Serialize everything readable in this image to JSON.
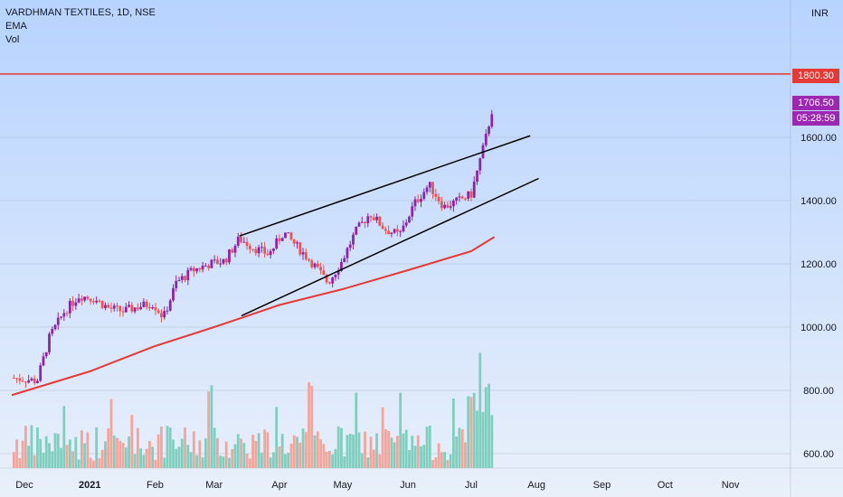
{
  "chart_data": {
    "type": "candlestick",
    "symbol_title": "VARDHMAN TEXTILES, 1D, NSE",
    "indicators": [
      "EMA",
      "Vol"
    ],
    "currency": "INR",
    "y_ticks": [
      600,
      800,
      1000,
      1200,
      1400,
      1600
    ],
    "y_tick_labels": [
      "600.00",
      "800.00",
      "1000.00",
      "1200.00",
      "1400.00",
      "1600.00"
    ],
    "x_ticks": [
      {
        "label": "Dec",
        "day": 0
      },
      {
        "label": "2021",
        "day": 31
      },
      {
        "label": "Feb",
        "day": 62
      },
      {
        "label": "Mar",
        "day": 90
      },
      {
        "label": "Apr",
        "day": 121
      },
      {
        "label": "May",
        "day": 151
      },
      {
        "label": "Jun",
        "day": 182
      },
      {
        "label": "Jul",
        "day": 212
      },
      {
        "label": "Aug",
        "day": 243
      },
      {
        "label": "Sep",
        "day": 274
      },
      {
        "label": "Oct",
        "day": 304
      },
      {
        "label": "Nov",
        "day": 335
      }
    ],
    "ylim": [
      580,
      2000
    ],
    "resistance_level": {
      "value": 1800.3,
      "label": "1800.30",
      "color": "#e53935"
    },
    "last_price": {
      "value": 1706.5,
      "label": "1706.50",
      "countdown": "05:28:59",
      "color": "#9c27b0"
    },
    "close_series": [
      {
        "day": -6,
        "close": 840
      },
      {
        "day": 6,
        "close": 830
      },
      {
        "day": 12,
        "close": 970
      },
      {
        "day": 19,
        "close": 1050
      },
      {
        "day": 26,
        "close": 1100
      },
      {
        "day": 33,
        "close": 1090
      },
      {
        "day": 40,
        "close": 1060
      },
      {
        "day": 47,
        "close": 1050
      },
      {
        "day": 54,
        "close": 1065
      },
      {
        "day": 61,
        "close": 1075
      },
      {
        "day": 66,
        "close": 1030
      },
      {
        "day": 72,
        "close": 1140
      },
      {
        "day": 80,
        "close": 1180
      },
      {
        "day": 88,
        "close": 1200
      },
      {
        "day": 95,
        "close": 1210
      },
      {
        "day": 102,
        "close": 1280
      },
      {
        "day": 109,
        "close": 1250
      },
      {
        "day": 116,
        "close": 1230
      },
      {
        "day": 123,
        "close": 1300
      },
      {
        "day": 130,
        "close": 1250
      },
      {
        "day": 137,
        "close": 1200
      },
      {
        "day": 144,
        "close": 1140
      },
      {
        "day": 150,
        "close": 1200
      },
      {
        "day": 157,
        "close": 1300
      },
      {
        "day": 164,
        "close": 1360
      },
      {
        "day": 171,
        "close": 1310
      },
      {
        "day": 178,
        "close": 1290
      },
      {
        "day": 185,
        "close": 1390
      },
      {
        "day": 192,
        "close": 1450
      },
      {
        "day": 199,
        "close": 1380
      },
      {
        "day": 206,
        "close": 1400
      },
      {
        "day": 212,
        "close": 1420
      },
      {
        "day": 219,
        "close": 1600
      },
      {
        "day": 223,
        "close": 1720
      }
    ],
    "ema_series": [
      {
        "day": -6,
        "value": 785
      },
      {
        "day": 31,
        "value": 860
      },
      {
        "day": 62,
        "value": 940
      },
      {
        "day": 90,
        "value": 1000
      },
      {
        "day": 121,
        "value": 1070
      },
      {
        "day": 151,
        "value": 1120
      },
      {
        "day": 182,
        "value": 1180
      },
      {
        "day": 212,
        "value": 1240
      },
      {
        "day": 223,
        "value": 1285
      }
    ],
    "trendlines": [
      {
        "name": "upper-channel",
        "start": {
          "day": 102,
          "value": 1288
        },
        "end": {
          "day": 240,
          "value": 1605
        }
      },
      {
        "name": "lower-channel",
        "start": {
          "day": 103,
          "value": 1036
        },
        "end": {
          "day": 244,
          "value": 1470
        }
      }
    ]
  },
  "colors": {
    "background_top": "#b7d3ff",
    "background_bottom": "#e9f0fa",
    "up": "#8e24aa",
    "down": "#ef5350",
    "volume_up": "#7fcfbf",
    "volume_down": "#f5a49a",
    "ema": "#e53935",
    "grid": "#8b96a6",
    "text": "#131722"
  }
}
